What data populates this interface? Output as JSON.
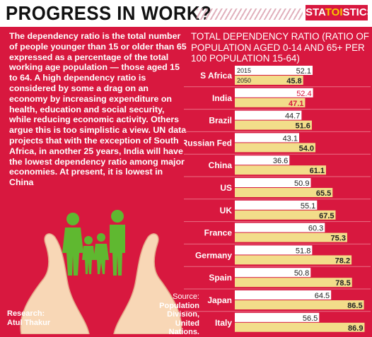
{
  "header": {
    "title": "PROGRESS IN WORK?",
    "brand_pre": "STA",
    "brand_mid": "TOI",
    "brand_post": "STICS"
  },
  "colors": {
    "background": "#d8183f",
    "bar_2015": "#ffffff",
    "bar_2050": "#f2dd8a",
    "highlight_text": "#d8183f"
  },
  "body_text": "The dependency ratio is the total number of people younger than 15 or older than 65 expressed as a percentage of the total working age population — those aged 15 to 64. A high dependency ratio is considered by some a drag on an economy by increasing expenditure on health, education and social security, while reducing economic activity. Others argue this is too simplistic a view. UN data projects that with the exception of South Africa, in another 25 years, India will have the lowest dependency ratio among major economies. At present, it is lowest in China",
  "credits": {
    "research_label": "Research:",
    "research_name": "Atul Thakur",
    "source_label": "Source:",
    "source_text": "Population Division, United Nations."
  },
  "chart_data": {
    "type": "bar",
    "orientation": "horizontal",
    "title": "TOTAL DEPENDENCY RATIO (RATIO OF POPULATION AGED 0-14 AND 65+ PER 100 POPULATION 15-64)",
    "categories": [
      "S Africa",
      "India",
      "Brazil",
      "Russian Fed",
      "China",
      "US",
      "UK",
      "France",
      "Germany",
      "Spain",
      "Japan",
      "Italy"
    ],
    "series": [
      {
        "name": "2015",
        "values": [
          52.1,
          52.4,
          44.7,
          43.1,
          36.6,
          50.9,
          55.1,
          60.3,
          51.8,
          50.8,
          64.5,
          56.5
        ]
      },
      {
        "name": "2050",
        "values": [
          45.8,
          47.1,
          51.6,
          54.0,
          61.1,
          65.5,
          67.5,
          75.3,
          78.2,
          78.5,
          86.5,
          86.9
        ]
      }
    ],
    "value_labels": {
      "2015": [
        "52.1",
        "52.4",
        "44.7",
        "43.1",
        "36.6",
        "50.9",
        "55.1",
        "60.3",
        "51.8",
        "50.8",
        "64.5",
        "56.5"
      ],
      "2050": [
        "45.8",
        "47.1",
        "51.6",
        "54.0",
        "61.1",
        "65.5",
        "67.5",
        "75.3",
        "78.2",
        "78.5",
        "86.5",
        "86.9"
      ]
    },
    "highlight_category": "India",
    "legend_placement": "inside-first-row",
    "grid": false,
    "xlim": [
      0,
      90
    ]
  }
}
